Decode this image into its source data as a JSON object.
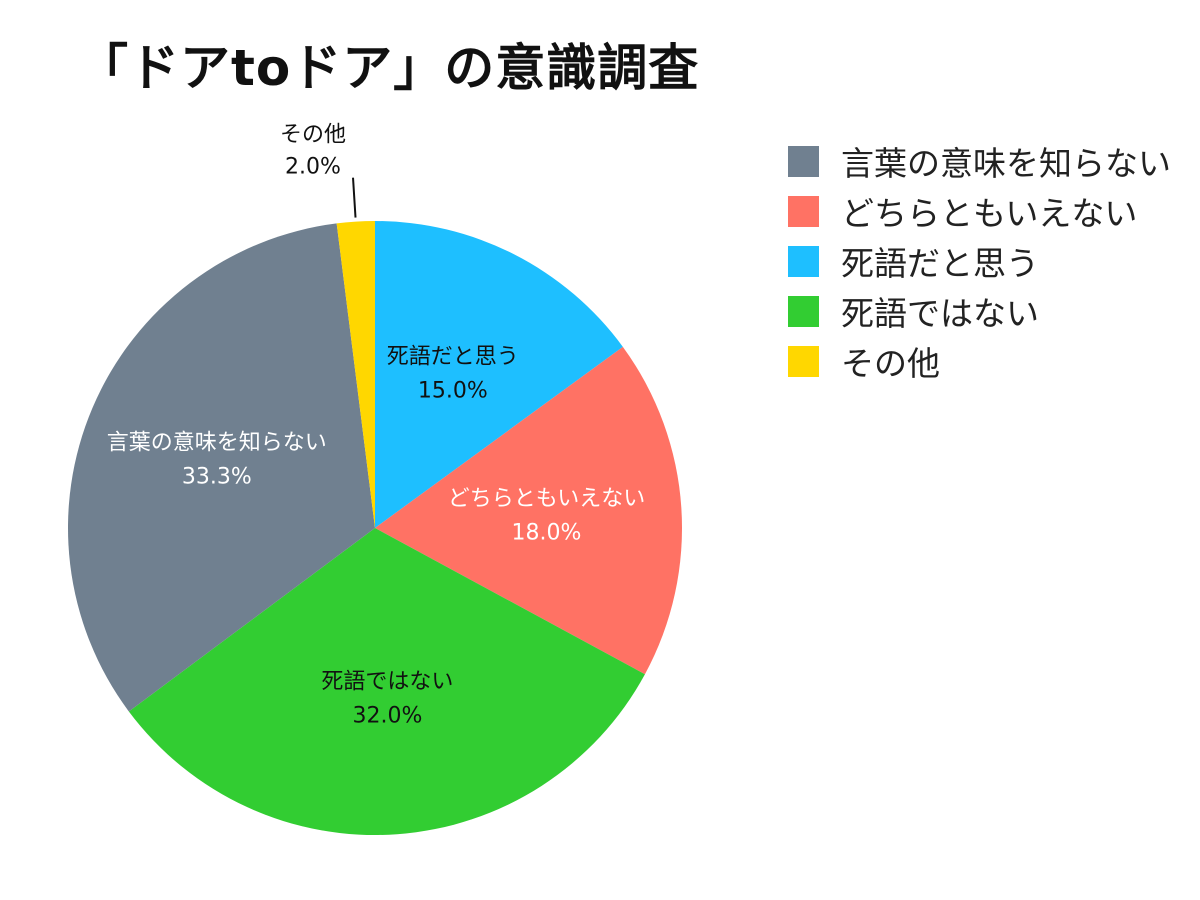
{
  "chart_data": {
    "type": "pie",
    "title": "「ドアtoドア」の意識調査",
    "slices": [
      {
        "label": "死語だと思う",
        "value": 15.0,
        "value_label": "15.0%",
        "color": "#1EBFFF",
        "text_color": "#111111"
      },
      {
        "label": "どちらともいえない",
        "value": 18.0,
        "value_label": "18.0%",
        "color": "#FF7264",
        "text_color": "#FFFFFF"
      },
      {
        "label": "死語ではない",
        "value": 32.0,
        "value_label": "32.0%",
        "color": "#32CD32",
        "text_color": "#111111"
      },
      {
        "label": "言葉の意味を知らない",
        "value": 33.3,
        "value_label": "33.3%",
        "color": "#708090",
        "text_color": "#FFFFFF"
      },
      {
        "label": "その他",
        "value": 2.0,
        "value_label": "2.0%",
        "color": "#FFD700",
        "text_color": "#111111"
      }
    ],
    "legend": {
      "position": "right",
      "items": [
        {
          "label": "言葉の意味を知らない",
          "color": "#708090"
        },
        {
          "label": "どちらともいえない",
          "color": "#FF7264"
        },
        {
          "label": "死語だと思う",
          "color": "#1EBFFF"
        },
        {
          "label": "死語ではない",
          "color": "#32CD32"
        },
        {
          "label": "その他",
          "color": "#FFD700"
        }
      ]
    }
  }
}
